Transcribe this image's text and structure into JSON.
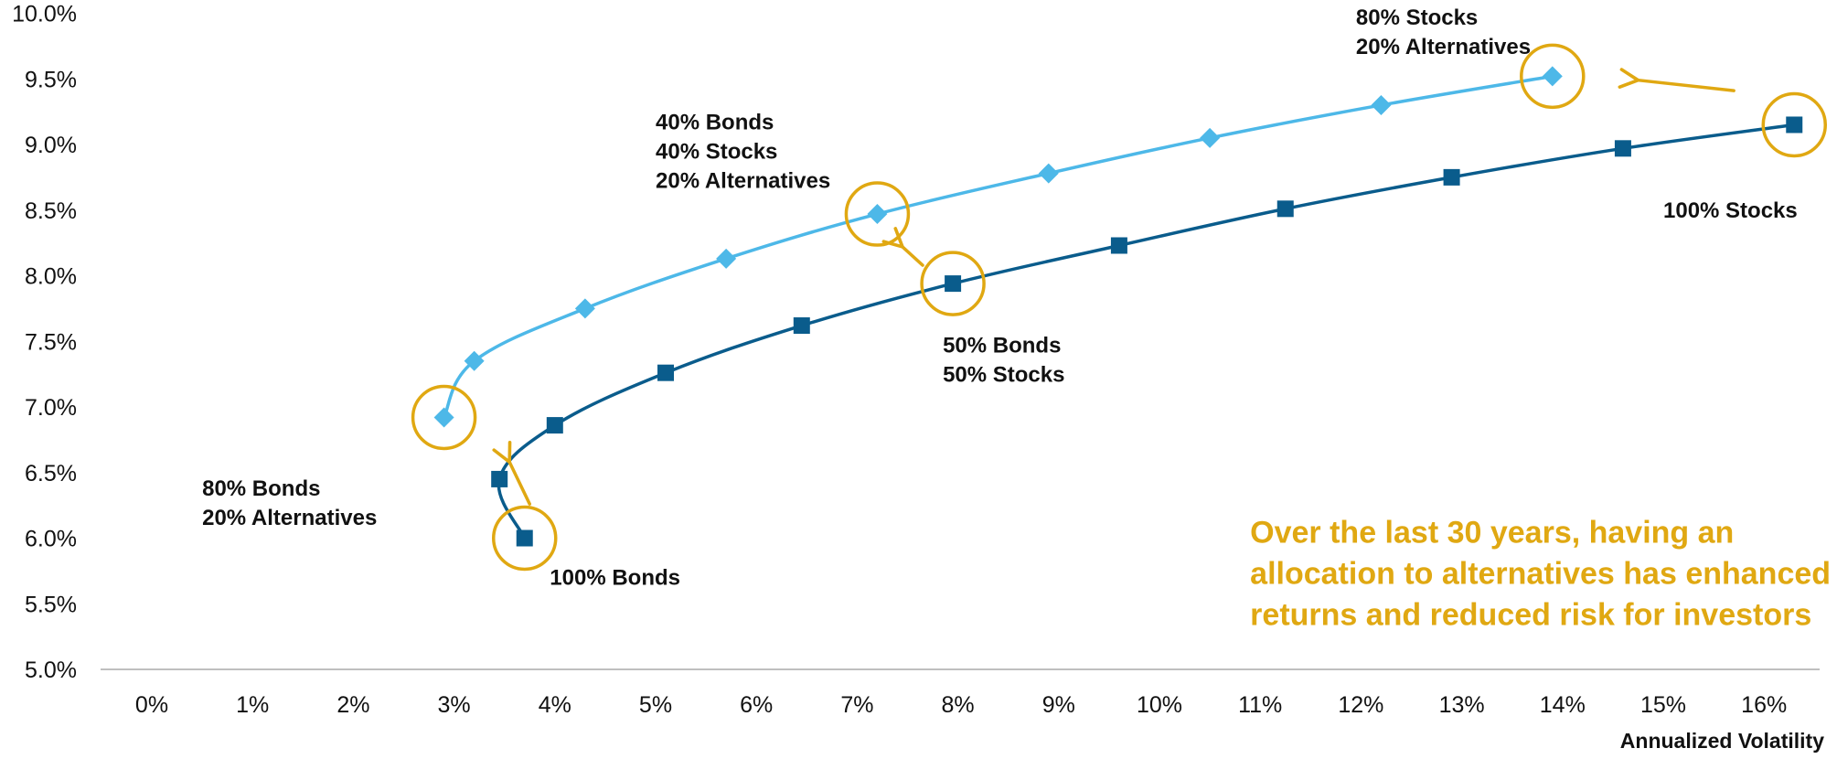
{
  "chart_data": {
    "type": "line",
    "title": "",
    "xlabel": "Annualized Volatility",
    "ylabel": "",
    "xlim": [
      0,
      16
    ],
    "ylim": [
      5.0,
      10.0
    ],
    "grid": false,
    "x_ticks": [
      "0%",
      "1%",
      "2%",
      "3%",
      "4%",
      "5%",
      "6%",
      "7%",
      "8%",
      "9%",
      "10%",
      "11%",
      "12%",
      "13%",
      "14%",
      "15%",
      "16%"
    ],
    "y_ticks": [
      "5.0%",
      "5.5%",
      "6.0%",
      "6.5%",
      "7.0%",
      "7.5%",
      "8.0%",
      "8.5%",
      "9.0%",
      "9.5%",
      "10.0%"
    ],
    "series": [
      {
        "color": "#4db8e8",
        "marker": "diamond",
        "points": [
          {
            "x": 2.9,
            "y": 6.92
          },
          {
            "x": 3.2,
            "y": 7.35
          },
          {
            "x": 4.3,
            "y": 7.75
          },
          {
            "x": 5.7,
            "y": 8.13
          },
          {
            "x": 7.2,
            "y": 8.47
          },
          {
            "x": 8.9,
            "y": 8.78
          },
          {
            "x": 10.5,
            "y": 9.05
          },
          {
            "x": 12.2,
            "y": 9.3
          },
          {
            "x": 13.9,
            "y": 9.52
          }
        ]
      },
      {
        "color": "#0a5c8c",
        "marker": "square",
        "points": [
          {
            "x": 3.7,
            "y": 6.0
          },
          {
            "x": 3.45,
            "y": 6.45
          },
          {
            "x": 4.0,
            "y": 6.86
          },
          {
            "x": 5.1,
            "y": 7.26
          },
          {
            "x": 6.45,
            "y": 7.62
          },
          {
            "x": 7.95,
            "y": 7.94
          },
          {
            "x": 9.6,
            "y": 8.23
          },
          {
            "x": 11.25,
            "y": 8.51
          },
          {
            "x": 12.9,
            "y": 8.75
          },
          {
            "x": 14.6,
            "y": 8.97
          },
          {
            "x": 16.3,
            "y": 9.15
          }
        ]
      }
    ],
    "annotations": [
      {
        "lines": [
          "80% Stocks",
          "20% Alternatives"
        ],
        "x": 11.95,
        "y": 9.97
      },
      {
        "lines": [
          "40% Bonds",
          "40% Stocks",
          "20% Alternatives"
        ],
        "x": 5.0,
        "y": 9.17
      },
      {
        "lines": [
          "100% Stocks"
        ],
        "x": 15.0,
        "y": 8.5
      },
      {
        "lines": [
          "50% Bonds",
          "50% Stocks"
        ],
        "x": 7.85,
        "y": 7.47
      },
      {
        "lines": [
          "80% Bonds",
          "20% Alternatives"
        ],
        "x": 0.5,
        "y": 6.38
      },
      {
        "lines": [
          "100% Bonds"
        ],
        "x": 3.95,
        "y": 5.7
      }
    ],
    "highlights": [
      {
        "x": 2.9,
        "y": 6.92
      },
      {
        "x": 3.7,
        "y": 6.0
      },
      {
        "x": 7.2,
        "y": 8.47
      },
      {
        "x": 7.95,
        "y": 7.94
      },
      {
        "x": 13.9,
        "y": 9.52
      },
      {
        "x": 16.3,
        "y": 9.15
      }
    ],
    "arrows": [
      {
        "from": [
          3.75,
          6.26
        ],
        "to": [
          3.55,
          6.58
        ]
      },
      {
        "from": [
          7.65,
          8.08
        ],
        "to": [
          7.45,
          8.22
        ]
      },
      {
        "from": [
          15.7,
          9.41
        ],
        "to": [
          14.75,
          9.49
        ]
      }
    ],
    "callout": {
      "lines": [
        "Over the last 30 years, having an",
        "allocation to alternatives has enhanced",
        "returns and reduced risk for investors"
      ],
      "color": "#e0a812",
      "x": 10.9,
      "y": 6.05
    },
    "highlight_color": "#e0a812"
  }
}
